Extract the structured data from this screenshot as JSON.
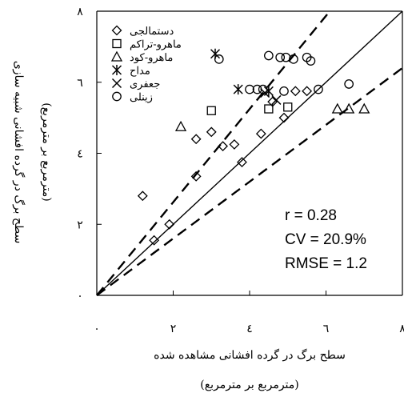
{
  "chart_data": {
    "type": "scatter",
    "xlabel": "سطح برگ در گرده افشانی مشاهده شده",
    "xlabel_unit": "(مترمربع بر مترمربع)",
    "ylabel": "سطح برگ در گرده افشانی شبیه سازی",
    "ylabel_unit": "(مترمربع بر مترمربع)",
    "xlim": [
      0,
      8
    ],
    "ylim": [
      0,
      8
    ],
    "x_ticks": [
      0,
      2,
      4,
      6,
      8
    ],
    "y_ticks": [
      0,
      2,
      4,
      6,
      8
    ],
    "x_tick_labels": [
      "۰",
      "۲",
      "٤",
      "٦",
      "٨"
    ],
    "y_tick_labels": [
      "۰",
      "۲",
      "٤",
      "٦",
      "٨"
    ],
    "legend_position": "top-left",
    "series": [
      {
        "name": "دستمالجی",
        "marker": "diamond",
        "points": [
          [
            1.2,
            2.8
          ],
          [
            1.5,
            1.55
          ],
          [
            1.9,
            2.0
          ],
          [
            2.6,
            4.4
          ],
          [
            2.6,
            3.35
          ],
          [
            3.0,
            4.6
          ],
          [
            3.3,
            4.2
          ],
          [
            3.6,
            4.25
          ],
          [
            3.8,
            3.75
          ],
          [
            4.3,
            4.55
          ],
          [
            4.6,
            5.45
          ],
          [
            4.9,
            5.0
          ],
          [
            5.2,
            5.75
          ],
          [
            5.5,
            5.75
          ]
        ]
      },
      {
        "name": "ماهرو-تراکم",
        "marker": "square",
        "points": [
          [
            3.0,
            5.2
          ],
          [
            4.5,
            5.25
          ],
          [
            5.0,
            5.3
          ]
        ]
      },
      {
        "name": "ماهرو-کود",
        "marker": "triangle",
        "points": [
          [
            2.2,
            4.75
          ],
          [
            6.3,
            5.25
          ],
          [
            6.6,
            5.25
          ],
          [
            7.0,
            5.25
          ]
        ]
      },
      {
        "name": "مداح",
        "marker": "asterisk",
        "points": [
          [
            3.1,
            6.8
          ],
          [
            3.7,
            5.8
          ],
          [
            4.5,
            5.75
          ]
        ]
      },
      {
        "name": "جعفری",
        "marker": "x",
        "points": [
          [
            4.4,
            5.7
          ],
          [
            4.7,
            5.5
          ]
        ]
      },
      {
        "name": "زینلی",
        "marker": "circle",
        "points": [
          [
            3.2,
            6.65
          ],
          [
            4.0,
            5.8
          ],
          [
            4.2,
            5.8
          ],
          [
            4.35,
            5.8
          ],
          [
            4.5,
            6.75
          ],
          [
            4.8,
            6.7
          ],
          [
            4.9,
            5.75
          ],
          [
            4.95,
            6.7
          ],
          [
            5.15,
            6.65
          ],
          [
            5.5,
            6.7
          ],
          [
            5.6,
            6.6
          ],
          [
            5.8,
            5.8
          ],
          [
            6.6,
            5.95
          ]
        ]
      }
    ],
    "lines": [
      {
        "name": "1:1",
        "style": "solid",
        "points": [
          [
            0,
            0
          ],
          [
            8,
            8
          ]
        ]
      },
      {
        "name": "upper",
        "style": "dashed",
        "points": [
          [
            0,
            0
          ],
          [
            6.1,
            8
          ]
        ]
      },
      {
        "name": "lower",
        "style": "dashed",
        "points": [
          [
            0,
            0
          ],
          [
            8,
            6.4
          ]
        ]
      }
    ],
    "annotations": [
      "r = 0.28",
      "CV = 20.9%",
      "RMSE = 1.2"
    ]
  },
  "colors": {
    "marks": "#000000",
    "background": "#ffffff"
  }
}
